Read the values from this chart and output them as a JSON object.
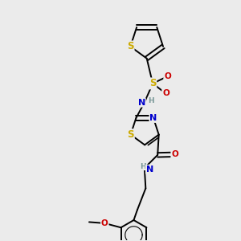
{
  "bg_color": "#ebebeb",
  "atom_colors": {
    "C": "#000000",
    "N": "#0000cc",
    "O": "#cc0000",
    "S": "#ccaa00",
    "H": "#7a9999"
  },
  "bond_lw": 1.4,
  "font_size": 7.5,
  "xlim": [
    0,
    10
  ],
  "ylim": [
    0,
    10
  ]
}
